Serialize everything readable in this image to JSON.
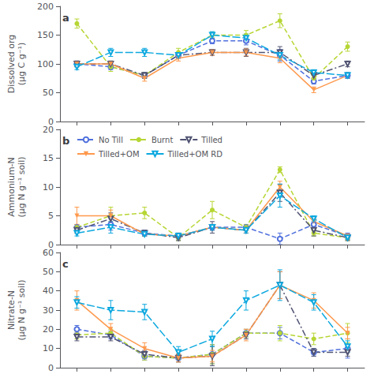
{
  "chart_data": [
    {
      "type": "line",
      "title": "a",
      "ylabel": "Dissolved org\n(μg C g⁻¹)",
      "x": [
        1,
        2,
        3,
        4,
        5,
        6,
        7,
        8,
        9
      ],
      "xlim": [
        0.5,
        9.5
      ],
      "xticks": [
        1,
        2,
        3,
        4,
        5,
        6,
        7,
        8,
        9
      ],
      "ylim": [
        0,
        200
      ],
      "yticks": [
        0,
        50,
        100,
        150,
        200
      ],
      "grid": false,
      "tick_labels": "y",
      "series": [
        {
          "name": "No Till",
          "marker": "circle_open",
          "line_style": "dashed",
          "values": [
            100,
            95,
            80,
            115,
            140,
            140,
            115,
            70,
            80
          ],
          "errors": [
            5,
            5,
            5,
            5,
            5,
            7,
            10,
            5,
            5
          ]
        },
        {
          "name": "Burnt",
          "marker": "circle",
          "line_style": "dashed",
          "values": [
            170,
            95,
            80,
            120,
            150,
            150,
            175,
            75,
            130
          ],
          "errors": [
            8,
            8,
            5,
            7,
            5,
            8,
            12,
            8,
            8
          ]
        },
        {
          "name": "Tilled",
          "marker": "triangle_down_open",
          "line_style": "dashdot",
          "values": [
            100,
            100,
            80,
            115,
            120,
            120,
            120,
            80,
            100
          ],
          "errors": [
            5,
            5,
            5,
            5,
            5,
            7,
            10,
            5,
            5
          ]
        },
        {
          "name": "Tilled+OM",
          "marker": "triangle_down",
          "line_style": "solid",
          "values": [
            100,
            100,
            75,
            110,
            120,
            120,
            110,
            55,
            80
          ],
          "errors": [
            5,
            5,
            5,
            5,
            5,
            6,
            8,
            5,
            5
          ]
        },
        {
          "name": "Tilled+OM RD",
          "marker": "triangle_down_open",
          "line_style": "longdash",
          "values": [
            95,
            120,
            120,
            115,
            150,
            145,
            115,
            85,
            80
          ],
          "errors": [
            5,
            7,
            7,
            5,
            6,
            7,
            8,
            5,
            5
          ]
        }
      ]
    },
    {
      "type": "line",
      "title": "b",
      "ylabel": "Ammonium-N\n(μg N g⁻¹ soil)",
      "x": [
        1,
        2,
        3,
        4,
        5,
        6,
        7,
        8,
        9
      ],
      "xlim": [
        0.5,
        9.5
      ],
      "xticks": [
        1,
        2,
        3,
        4,
        5,
        6,
        7,
        8,
        9
      ],
      "ylim": [
        0,
        20
      ],
      "yticks": [
        0,
        5,
        10,
        15,
        20
      ],
      "grid": false,
      "tick_labels": "y",
      "legend": "upper left",
      "series": [
        {
          "name": "No Till",
          "marker": "circle_open",
          "line_style": "dashed",
          "values": [
            3.0,
            3.5,
            2.0,
            1.5,
            3.0,
            3.0,
            1.0,
            3.5,
            1.5
          ],
          "errors": [
            0.5,
            1.0,
            0.5,
            0.5,
            0.5,
            0.5,
            1.0,
            1.0,
            0.5
          ]
        },
        {
          "name": "Burnt",
          "marker": "circle",
          "line_style": "dashed",
          "values": [
            3.0,
            5.0,
            5.5,
            1.2,
            6.0,
            3.0,
            13.0,
            2.0,
            1.2
          ],
          "errors": [
            0.5,
            1.5,
            1.0,
            0.5,
            1.5,
            0.5,
            0.5,
            0.5,
            0.5
          ]
        },
        {
          "name": "Tilled",
          "marker": "triangle_down_open",
          "line_style": "dashdot",
          "values": [
            2.5,
            4.5,
            2.0,
            1.2,
            3.0,
            2.5,
            9.0,
            2.5,
            1.2
          ],
          "errors": [
            0.5,
            1.0,
            0.5,
            0.5,
            1.0,
            0.5,
            1.5,
            1.0,
            0.5
          ]
        },
        {
          "name": "Tilled+OM",
          "marker": "triangle_down",
          "line_style": "solid",
          "values": [
            5.0,
            5.0,
            1.8,
            1.5,
            3.0,
            2.5,
            10.0,
            4.0,
            1.5
          ],
          "errors": [
            1.5,
            1.0,
            0.3,
            0.5,
            0.5,
            0.5,
            1.0,
            0.5,
            0.3
          ]
        },
        {
          "name": "Tilled+OM RD",
          "marker": "triangle_down_open",
          "line_style": "longdash",
          "values": [
            2.0,
            3.0,
            1.8,
            1.5,
            3.0,
            2.5,
            8.5,
            4.5,
            1.2
          ],
          "errors": [
            0.5,
            1.0,
            0.3,
            0.5,
            0.5,
            0.5,
            2.0,
            0.5,
            0.3
          ]
        }
      ]
    },
    {
      "type": "line",
      "title": "c",
      "ylabel": "Nitrate-N\n(μg N g⁻¹ soil)",
      "x": [
        1,
        2,
        3,
        4,
        5,
        6,
        7,
        8,
        9
      ],
      "xlim": [
        0.5,
        9.5
      ],
      "xticks": [
        1,
        2,
        3,
        4,
        5,
        6,
        7,
        8,
        9
      ],
      "ylim": [
        0,
        60
      ],
      "yticks": [
        0,
        10,
        20,
        30,
        40,
        50,
        60
      ],
      "grid": false,
      "tick_labels": "y",
      "series": [
        {
          "name": "No Till",
          "marker": "circle_open",
          "line_style": "dashed",
          "values": [
            20,
            17,
            6,
            5,
            7,
            18,
            18,
            8,
            10
          ],
          "errors": [
            2,
            2,
            2,
            2,
            5,
            2,
            3,
            2,
            5
          ]
        },
        {
          "name": "Burnt",
          "marker": "circle",
          "line_style": "dashed",
          "values": [
            17,
            18,
            6,
            5,
            7,
            18,
            18,
            15,
            18
          ],
          "errors": [
            2,
            2,
            2,
            2,
            5,
            2,
            4,
            3,
            5
          ]
        },
        {
          "name": "Tilled",
          "marker": "triangle_down_open",
          "line_style": "dashdot",
          "values": [
            16,
            16,
            7,
            5,
            6,
            17,
            43,
            8,
            8
          ],
          "errors": [
            2,
            2,
            2,
            2,
            5,
            2,
            7,
            2,
            2
          ]
        },
        {
          "name": "Tilled+OM",
          "marker": "triangle_down",
          "line_style": "solid",
          "values": [
            35,
            20,
            10,
            5,
            6,
            17,
            43,
            35,
            18
          ],
          "errors": [
            5,
            3,
            3,
            2,
            3,
            3,
            7,
            4,
            3
          ]
        },
        {
          "name": "Tilled+OM RD",
          "marker": "triangle_down_open",
          "line_style": "longdash",
          "values": [
            34,
            30,
            29,
            8,
            15,
            35,
            43,
            34,
            11
          ],
          "errors": [
            3,
            5,
            4,
            3,
            4,
            5,
            8,
            4,
            3
          ]
        }
      ]
    }
  ]
}
